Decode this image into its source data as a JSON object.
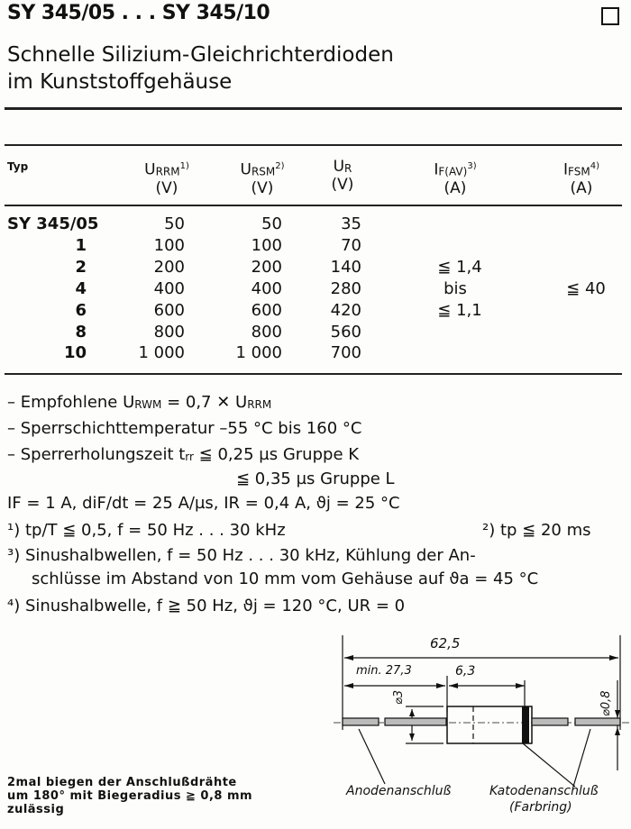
{
  "header": {
    "title": "SY 345/05 . . . SY 345/10",
    "subtitle_line1": "Schnelle Silizium-Gleichrichterdioden",
    "subtitle_line2": "im Kunststoffgehäuse"
  },
  "table": {
    "columns": [
      {
        "label": "Typ"
      },
      {
        "symbol": "U",
        "sub": "RRM",
        "note": "1)",
        "unit": "(V)"
      },
      {
        "symbol": "U",
        "sub": "RSM",
        "note": "2)",
        "unit": "(V)"
      },
      {
        "symbol": "U",
        "sub": "R",
        "note": "",
        "unit": "(V)"
      },
      {
        "symbol": "I",
        "sub": "F(AV)",
        "note": "3)",
        "unit": "(A)"
      },
      {
        "symbol": "I",
        "sub": "FSM",
        "note": "4)",
        "unit": "(A)"
      }
    ],
    "rows": [
      {
        "typ": "SY 345/05",
        "urrm": "50",
        "ursm": "50",
        "ur": "35"
      },
      {
        "typ": "1",
        "urrm": "100",
        "ursm": "100",
        "ur": "70"
      },
      {
        "typ": "2",
        "urrm": "200",
        "ursm": "200",
        "ur": "140"
      },
      {
        "typ": "4",
        "urrm": "400",
        "ursm": "400",
        "ur": "280"
      },
      {
        "typ": "6",
        "urrm": "600",
        "ursm": "600",
        "ur": "420"
      },
      {
        "typ": "8",
        "urrm": "800",
        "ursm": "800",
        "ur": "560"
      },
      {
        "typ": "10",
        "urrm": "1 000",
        "ursm": "1 000",
        "ur": "700"
      }
    ],
    "ifav": [
      "≦ 1,4",
      "bis",
      "≦ 1,1"
    ],
    "ifsm": "≦ 40"
  },
  "notes": {
    "n1": "– Empfohlene U",
    "n1_sub": "RWM",
    "n1_b": " = 0,7 ✕ U",
    "n1_sub2": "RRM",
    "n2": "– Sperrschichttemperatur –55 °C bis 160 °C",
    "n3": "– Sperrerholungszeit t",
    "n3_sub": "rr",
    "n3_b": " ≦ 0,25 µs Gruppe K",
    "n3_c": "≦ 0,35 µs Gruppe L",
    "cond": "I",
    "cond_text": "F = 1 A, diF/dt = 25 A/µs, IR = 0,4 A, ϑj = 25 °C",
    "f1": "¹) tp/T ≦ 0,5, f = 50 Hz . . . 30 kHz",
    "f2": "²) tp ≦ 20 ms",
    "f3a": "³) Sinushalbwellen,   f = 50 Hz . . . 30 kHz,   Kühlung   der   An-",
    "f3b": "schlüsse im Abstand von 10 mm vom Gehäuse auf ϑa = 45 °C",
    "f4": "⁴) Sinushalbwelle, f ≧ 50 Hz, ϑj = 120 °C, UR = 0"
  },
  "drawing": {
    "total_length": "62,5",
    "min_lead": "min. 27,3",
    "body_length": "6,3",
    "body_diameter": "⌀3",
    "lead_diameter": "⌀0,8",
    "anode_label": "Anodenanschluß",
    "cathode_label": "Katodenanschluß",
    "cathode_sub": "(Farbring)"
  },
  "bending_note": [
    "2mal biegen der Anschlußdrähte",
    "um 180° mit Biegeradius ≧ 0,8 mm",
    "zulässig"
  ]
}
